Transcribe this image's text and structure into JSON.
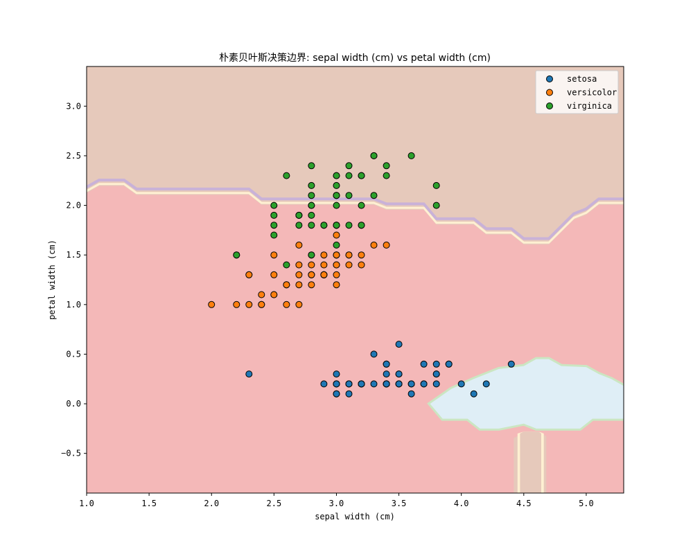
{
  "chart_data": {
    "type": "scatter",
    "title": "朴素贝叶斯决策边界: sepal width (cm) vs petal width (cm)",
    "xlabel": "sepal width (cm)",
    "ylabel": "petal width (cm)",
    "xlim": [
      1.0,
      5.3
    ],
    "ylim": [
      -0.9,
      3.4
    ],
    "xticks": [
      1.0,
      1.5,
      2.0,
      2.5,
      3.0,
      3.5,
      4.0,
      4.5,
      5.0
    ],
    "xtick_labels": [
      "1.0",
      "1.5",
      "2.0",
      "2.5",
      "3.0",
      "3.5",
      "4.0",
      "4.5",
      "5.0"
    ],
    "yticks": [
      -0.5,
      0.0,
      0.5,
      1.0,
      1.5,
      2.0,
      2.5,
      3.0
    ],
    "ytick_labels": [
      "−0.5",
      "0.0",
      "0.5",
      "1.0",
      "1.5",
      "2.0",
      "2.5",
      "3.0"
    ],
    "grid": false,
    "legend_position": "top-right",
    "regions": [
      {
        "class": "virginica",
        "color": "#e6c9bb"
      },
      {
        "class": "versicolor",
        "color": "#f4b8b8"
      },
      {
        "class": "setosa",
        "color": "#dfeef6"
      }
    ],
    "series": [
      {
        "name": "setosa",
        "color": "#1f77b4",
        "points": [
          [
            3.5,
            0.2
          ],
          [
            3.0,
            0.2
          ],
          [
            3.2,
            0.2
          ],
          [
            3.1,
            0.2
          ],
          [
            3.6,
            0.2
          ],
          [
            3.9,
            0.4
          ],
          [
            3.4,
            0.3
          ],
          [
            3.4,
            0.2
          ],
          [
            2.9,
            0.2
          ],
          [
            3.1,
            0.1
          ],
          [
            3.7,
            0.2
          ],
          [
            3.4,
            0.2
          ],
          [
            3.0,
            0.1
          ],
          [
            3.0,
            0.1
          ],
          [
            4.0,
            0.2
          ],
          [
            4.4,
            0.4
          ],
          [
            3.9,
            0.4
          ],
          [
            3.5,
            0.3
          ],
          [
            3.8,
            0.3
          ],
          [
            3.8,
            0.3
          ],
          [
            3.4,
            0.2
          ],
          [
            3.7,
            0.4
          ],
          [
            3.6,
            0.2
          ],
          [
            3.3,
            0.5
          ],
          [
            3.4,
            0.2
          ],
          [
            3.0,
            0.2
          ],
          [
            3.4,
            0.4
          ],
          [
            3.5,
            0.2
          ],
          [
            3.4,
            0.2
          ],
          [
            3.2,
            0.2
          ],
          [
            3.1,
            0.2
          ],
          [
            3.4,
            0.4
          ],
          [
            4.1,
            0.1
          ],
          [
            4.2,
            0.2
          ],
          [
            3.1,
            0.2
          ],
          [
            3.2,
            0.2
          ],
          [
            3.5,
            0.2
          ],
          [
            3.6,
            0.1
          ],
          [
            3.0,
            0.2
          ],
          [
            3.4,
            0.2
          ],
          [
            3.5,
            0.3
          ],
          [
            2.3,
            0.3
          ],
          [
            3.2,
            0.2
          ],
          [
            3.5,
            0.6
          ],
          [
            3.8,
            0.4
          ],
          [
            3.0,
            0.3
          ],
          [
            3.8,
            0.2
          ],
          [
            3.2,
            0.2
          ],
          [
            3.7,
            0.2
          ],
          [
            3.3,
            0.2
          ]
        ]
      },
      {
        "name": "versicolor",
        "color": "#ff7f0e",
        "points": [
          [
            3.2,
            1.4
          ],
          [
            3.2,
            1.5
          ],
          [
            3.1,
            1.5
          ],
          [
            2.3,
            1.3
          ],
          [
            2.8,
            1.5
          ],
          [
            2.8,
            1.3
          ],
          [
            3.3,
            1.6
          ],
          [
            2.4,
            1.0
          ],
          [
            2.9,
            1.3
          ],
          [
            2.7,
            1.4
          ],
          [
            2.0,
            1.0
          ],
          [
            3.0,
            1.5
          ],
          [
            2.2,
            1.0
          ],
          [
            2.9,
            1.4
          ],
          [
            2.9,
            1.3
          ],
          [
            3.1,
            1.4
          ],
          [
            3.0,
            1.5
          ],
          [
            2.7,
            1.0
          ],
          [
            2.2,
            1.5
          ],
          [
            2.5,
            1.1
          ],
          [
            3.2,
            1.8
          ],
          [
            2.8,
            1.3
          ],
          [
            2.5,
            1.5
          ],
          [
            2.8,
            1.2
          ],
          [
            2.9,
            1.3
          ],
          [
            3.0,
            1.4
          ],
          [
            2.8,
            1.4
          ],
          [
            3.0,
            1.7
          ],
          [
            2.9,
            1.5
          ],
          [
            2.6,
            1.0
          ],
          [
            2.4,
            1.1
          ],
          [
            2.4,
            1.0
          ],
          [
            2.7,
            1.2
          ],
          [
            2.7,
            1.6
          ],
          [
            3.0,
            1.5
          ],
          [
            3.4,
            1.6
          ],
          [
            3.1,
            1.5
          ],
          [
            2.3,
            1.3
          ],
          [
            3.0,
            1.3
          ],
          [
            2.5,
            1.3
          ],
          [
            2.6,
            1.2
          ],
          [
            3.0,
            1.4
          ],
          [
            2.6,
            1.2
          ],
          [
            2.3,
            1.0
          ],
          [
            2.7,
            1.3
          ],
          [
            3.0,
            1.2
          ],
          [
            2.9,
            1.3
          ],
          [
            2.9,
            1.3
          ],
          [
            2.5,
            1.1
          ],
          [
            2.8,
            1.3
          ]
        ]
      },
      {
        "name": "virginica",
        "color": "#2ca02c",
        "points": [
          [
            3.3,
            2.5
          ],
          [
            2.7,
            1.9
          ],
          [
            3.0,
            2.1
          ],
          [
            2.9,
            1.8
          ],
          [
            3.0,
            2.2
          ],
          [
            3.0,
            2.1
          ],
          [
            2.5,
            1.7
          ],
          [
            2.9,
            1.8
          ],
          [
            2.5,
            1.8
          ],
          [
            3.6,
            2.5
          ],
          [
            3.2,
            2.0
          ],
          [
            2.7,
            1.9
          ],
          [
            3.0,
            2.1
          ],
          [
            2.5,
            2.0
          ],
          [
            2.8,
            2.4
          ],
          [
            3.2,
            2.3
          ],
          [
            3.0,
            1.8
          ],
          [
            3.8,
            2.2
          ],
          [
            2.6,
            2.3
          ],
          [
            2.2,
            1.5
          ],
          [
            3.2,
            2.3
          ],
          [
            2.8,
            2.0
          ],
          [
            2.8,
            2.0
          ],
          [
            2.7,
            1.8
          ],
          [
            3.3,
            2.1
          ],
          [
            3.2,
            1.8
          ],
          [
            2.8,
            1.8
          ],
          [
            3.0,
            1.8
          ],
          [
            2.8,
            2.1
          ],
          [
            3.0,
            1.6
          ],
          [
            2.8,
            1.9
          ],
          [
            3.8,
            2.0
          ],
          [
            2.8,
            2.2
          ],
          [
            2.8,
            1.5
          ],
          [
            2.6,
            1.4
          ],
          [
            3.0,
            2.3
          ],
          [
            3.4,
            2.4
          ],
          [
            3.1,
            1.8
          ],
          [
            3.0,
            1.8
          ],
          [
            3.1,
            2.1
          ],
          [
            3.1,
            2.4
          ],
          [
            3.1,
            2.3
          ],
          [
            2.7,
            1.9
          ],
          [
            3.2,
            2.3
          ],
          [
            3.3,
            2.5
          ],
          [
            3.0,
            2.3
          ],
          [
            2.5,
            1.9
          ],
          [
            3.0,
            2.0
          ],
          [
            3.4,
            2.3
          ],
          [
            3.0,
            1.8
          ]
        ]
      }
    ]
  }
}
